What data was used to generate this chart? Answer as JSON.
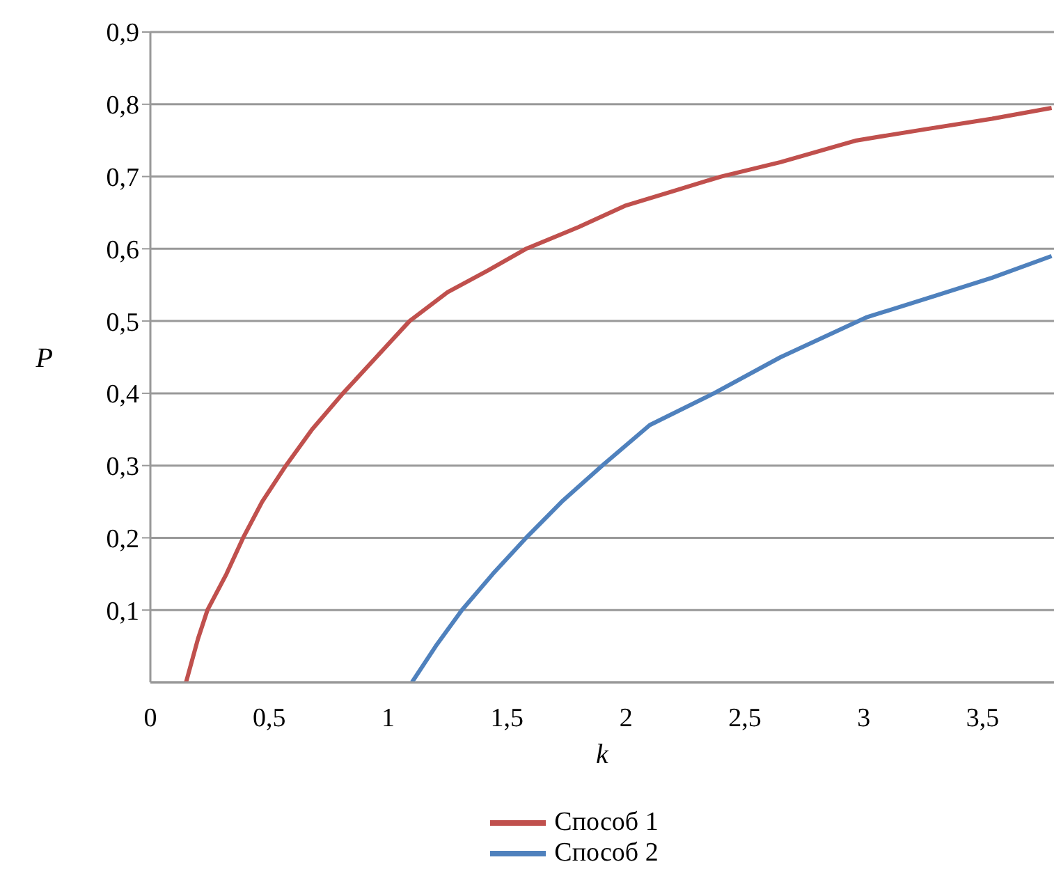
{
  "chart_data": {
    "type": "line",
    "xlabel": "k",
    "ylabel": "P",
    "xlim": [
      0,
      3.8
    ],
    "xticks": [
      0,
      {
        "value": 0.5,
        "label": "0,5"
      },
      1,
      {
        "value": 1.5,
        "label": "1,5"
      },
      2,
      {
        "value": 2.5,
        "label": "2,5"
      },
      3,
      {
        "value": 3.5,
        "label": "3,5"
      }
    ],
    "ylim": [
      0,
      0.9
    ],
    "yticks": [
      {
        "value": 0.1,
        "label": "0,1"
      },
      {
        "value": 0.2,
        "label": "0,2"
      },
      {
        "value": 0.3,
        "label": "0,3"
      },
      {
        "value": 0.4,
        "label": "0,4"
      },
      {
        "value": 0.5,
        "label": "0,5"
      },
      {
        "value": 0.6,
        "label": "0,6"
      },
      {
        "value": 0.7,
        "label": "0,7"
      },
      {
        "value": 0.8,
        "label": "0,8"
      },
      {
        "value": 0.9,
        "label": "0,9"
      }
    ],
    "grid": "y",
    "legend": "bottom",
    "marker": "none",
    "line_style": "solid",
    "series": [
      {
        "name": "Способ 1",
        "color": "#c0504d",
        "x": [
          0.15,
          0.2,
          0.24,
          0.32,
          0.39,
          0.47,
          0.57,
          0.68,
          0.81,
          0.95,
          1.09,
          1.25,
          1.42,
          1.58,
          1.8,
          2.0,
          2.2,
          2.4,
          2.65,
          2.97,
          3.25,
          3.54,
          3.79
        ],
        "values": [
          0,
          0.06,
          0.1,
          0.15,
          0.2,
          0.25,
          0.3,
          0.35,
          0.4,
          0.45,
          0.5,
          0.54,
          0.57,
          0.6,
          0.63,
          0.66,
          0.68,
          0.7,
          0.72,
          0.75,
          0.765,
          0.78,
          0.795
        ]
      },
      {
        "name": "Способ 2",
        "color": "#4f81bd",
        "x": [
          1.1,
          1.2,
          1.31,
          1.44,
          1.58,
          1.73,
          1.9,
          2.1,
          2.37,
          2.65,
          3.01,
          3.3,
          3.54,
          3.79
        ],
        "values": [
          0,
          0.05,
          0.1,
          0.15,
          0.2,
          0.25,
          0.3,
          0.356,
          0.4,
          0.45,
          0.505,
          0.535,
          0.56,
          0.59
        ]
      }
    ]
  }
}
